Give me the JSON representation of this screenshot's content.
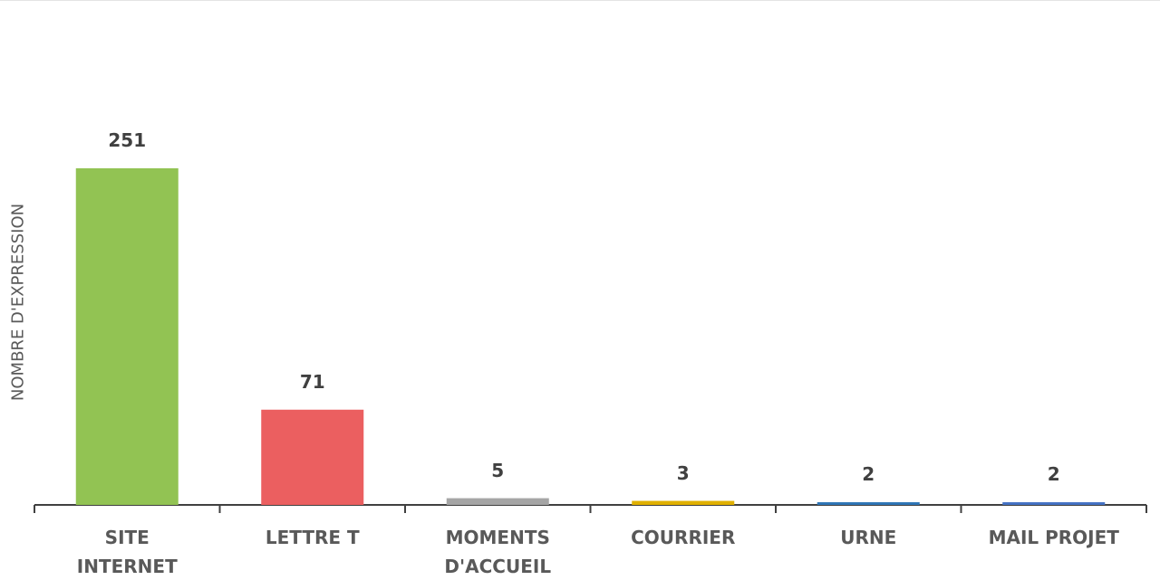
{
  "chart_data": {
    "type": "bar",
    "y_axis_label": "NOMBRE D'EXPRESSION",
    "categories": [
      "SITE INTERNET",
      "LETTRE T",
      "MOMENTS D'ACCUEIL",
      "COURRIER",
      "URNE",
      "MAIL PROJET"
    ],
    "values": [
      251,
      71,
      5,
      3,
      2,
      2
    ],
    "colors": [
      "#92c353",
      "#eb5f60",
      "#a5a5a5",
      "#e0b000",
      "#2e75b6",
      "#4472c4"
    ]
  }
}
